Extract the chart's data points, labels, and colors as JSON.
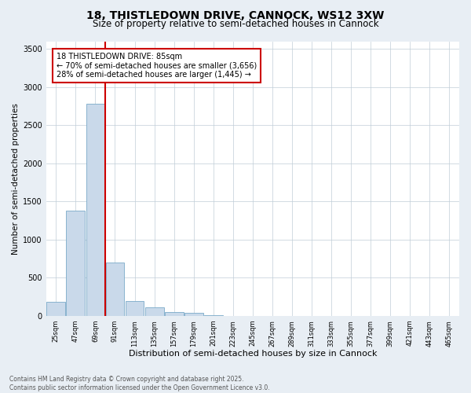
{
  "title1": "18, THISTLEDOWN DRIVE, CANNOCK, WS12 3XW",
  "title2": "Size of property relative to semi-detached houses in Cannock",
  "xlabel": "Distribution of semi-detached houses by size in Cannock",
  "ylabel": "Number of semi-detached properties",
  "categories": [
    "25sqm",
    "47sqm",
    "69sqm",
    "91sqm",
    "113sqm",
    "135sqm",
    "157sqm",
    "179sqm",
    "201sqm",
    "223sqm",
    "245sqm",
    "267sqm",
    "289sqm",
    "311sqm",
    "333sqm",
    "355sqm",
    "377sqm",
    "399sqm",
    "421sqm",
    "443sqm",
    "465sqm"
  ],
  "values": [
    180,
    1380,
    2780,
    700,
    200,
    110,
    55,
    40,
    5,
    0,
    0,
    0,
    0,
    0,
    0,
    0,
    0,
    0,
    0,
    0,
    0
  ],
  "bar_color": "#c9d9ea",
  "bar_edge_color": "#7aaac8",
  "property_line_color": "#cc0000",
  "annotation_box_color": "#cc0000",
  "annotation_text": "18 THISTLEDOWN DRIVE: 85sqm\n← 70% of semi-detached houses are smaller (3,656)\n28% of semi-detached houses are larger (1,445) →",
  "annotation_fontsize": 7,
  "ylim": [
    0,
    3600
  ],
  "yticks": [
    0,
    500,
    1000,
    1500,
    2000,
    2500,
    3000,
    3500
  ],
  "background_color": "#e8eef4",
  "plot_bg_color": "#ffffff",
  "grid_color": "#c0cdd8",
  "footer": "Contains HM Land Registry data © Crown copyright and database right 2025.\nContains public sector information licensed under the Open Government Licence v3.0.",
  "title1_fontsize": 10,
  "title2_fontsize": 8.5,
  "xlabel_fontsize": 8,
  "ylabel_fontsize": 7.5,
  "footer_fontsize": 5.5
}
